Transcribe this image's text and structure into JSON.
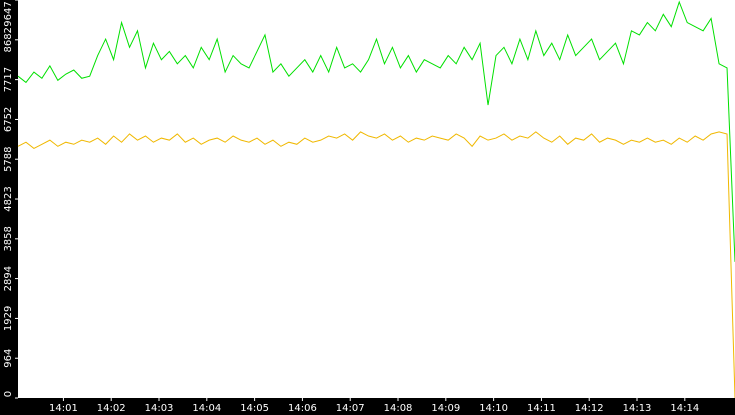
{
  "chart_data": {
    "type": "line",
    "x": [
      0,
      10,
      20,
      30,
      40,
      50,
      60,
      70,
      80,
      90,
      100,
      110,
      120,
      130,
      140,
      150,
      160,
      170,
      180,
      190,
      200,
      210,
      220,
      230,
      240,
      250,
      260,
      270,
      280,
      290,
      300,
      310,
      320,
      330,
      340,
      350,
      360,
      370,
      380,
      390,
      400,
      410,
      420,
      430,
      440,
      450,
      460,
      470,
      480,
      490,
      500,
      510,
      520,
      530,
      540,
      550,
      560,
      570,
      580,
      590,
      600,
      610,
      620,
      630,
      640,
      650,
      660,
      670,
      680,
      690,
      700,
      710,
      720,
      730,
      740,
      750,
      760,
      770,
      780,
      790,
      800,
      810,
      820,
      830,
      840,
      850,
      860,
      870,
      880,
      890,
      900
    ],
    "series": [
      {
        "color": "#00e000",
        "values": [
          7800,
          7650,
          7900,
          7750,
          8050,
          7700,
          7850,
          7950,
          7750,
          7800,
          8300,
          8700,
          8200,
          9100,
          8500,
          8900,
          8000,
          8600,
          8200,
          8400,
          8100,
          8300,
          8000,
          8500,
          8200,
          8700,
          7900,
          8300,
          8100,
          8000,
          8400,
          8800,
          7900,
          8100,
          7800,
          8000,
          8200,
          7900,
          8300,
          7900,
          8500,
          8000,
          8100,
          7900,
          8200,
          8700,
          8100,
          8500,
          8000,
          8300,
          7900,
          8200,
          8100,
          8000,
          8300,
          8100,
          8500,
          8200,
          8600,
          7100,
          8300,
          8500,
          8100,
          8700,
          8200,
          8900,
          8300,
          8600,
          8200,
          8800,
          8300,
          8500,
          8700,
          8200,
          8400,
          8600,
          8100,
          8900,
          8800,
          9100,
          8900,
          9300,
          9000,
          9600,
          9100,
          9000,
          8900,
          9200,
          8100,
          8000,
          3300
        ]
      },
      {
        "color": "#f0b800",
        "values": [
          6100,
          6200,
          6050,
          6150,
          6250,
          6100,
          6200,
          6150,
          6250,
          6200,
          6300,
          6150,
          6350,
          6200,
          6400,
          6250,
          6350,
          6200,
          6300,
          6250,
          6400,
          6200,
          6300,
          6150,
          6250,
          6300,
          6200,
          6350,
          6250,
          6200,
          6300,
          6150,
          6250,
          6100,
          6200,
          6150,
          6300,
          6200,
          6250,
          6350,
          6300,
          6400,
          6250,
          6450,
          6350,
          6300,
          6400,
          6250,
          6350,
          6200,
          6300,
          6250,
          6350,
          6300,
          6250,
          6400,
          6300,
          6100,
          6350,
          6250,
          6300,
          6400,
          6250,
          6350,
          6300,
          6450,
          6300,
          6200,
          6350,
          6150,
          6300,
          6250,
          6400,
          6200,
          6300,
          6250,
          6150,
          6250,
          6200,
          6300,
          6200,
          6250,
          6150,
          6300,
          6200,
          6350,
          6250,
          6400,
          6450,
          6400,
          0
        ]
      }
    ],
    "xlim": [
      0,
      900
    ],
    "xticks": [
      {
        "value": 57,
        "label": "14:01"
      },
      {
        "value": 117,
        "label": "14:02"
      },
      {
        "value": 177,
        "label": "14:03"
      },
      {
        "value": 237,
        "label": "14:04"
      },
      {
        "value": 297,
        "label": "14:05"
      },
      {
        "value": 357,
        "label": "14:06"
      },
      {
        "value": 417,
        "label": "14:07"
      },
      {
        "value": 477,
        "label": "14:08"
      },
      {
        "value": 537,
        "label": "14:09"
      },
      {
        "value": 597,
        "label": "14:10"
      },
      {
        "value": 657,
        "label": "14:11"
      },
      {
        "value": 717,
        "label": "14:12"
      },
      {
        "value": 777,
        "label": "14:13"
      },
      {
        "value": 837,
        "label": "14:14"
      }
    ],
    "ylim": [
      0,
      9647
    ],
    "yticks": [
      0,
      964,
      1929,
      2894,
      3858,
      4823,
      5788,
      6752,
      7717,
      8682,
      9647
    ]
  }
}
